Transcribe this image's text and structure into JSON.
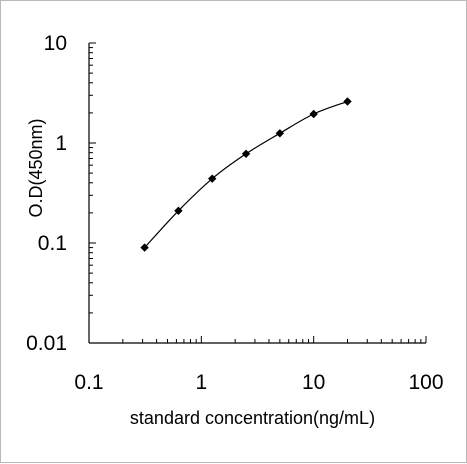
{
  "chart_data": {
    "type": "line",
    "title": "",
    "xlabel": "standard concentration(ng/mL)",
    "ylabel": "O.D(450nm)",
    "x_scale": "log",
    "y_scale": "log",
    "xlim": [
      0.1,
      100
    ],
    "ylim": [
      0.01,
      10
    ],
    "x_ticks": [
      "0.1",
      "1",
      "10",
      "100"
    ],
    "y_ticks": [
      "0.01",
      "0.1",
      "1",
      "10"
    ],
    "grid": false,
    "legend": "none",
    "series": [
      {
        "x": [
          0.3125,
          0.625,
          1.25,
          2.5,
          5,
          10,
          20
        ],
        "y": [
          0.09,
          0.21,
          0.44,
          0.78,
          1.25,
          1.95,
          2.6
        ],
        "marker": "diamond",
        "color": "#000000"
      }
    ]
  }
}
